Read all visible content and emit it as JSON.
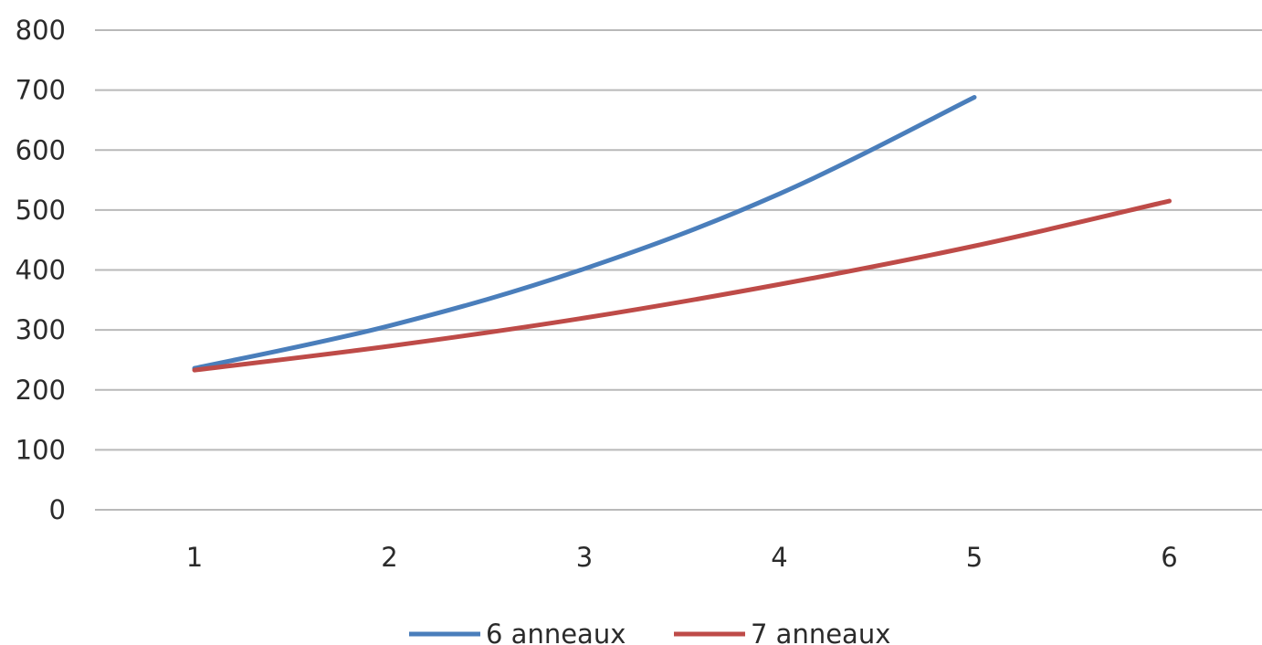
{
  "chart_data": {
    "type": "line",
    "title": "",
    "xlabel": "",
    "ylabel": "",
    "x": [
      1,
      2,
      3,
      4,
      5,
      6
    ],
    "ylim": [
      0,
      800
    ],
    "yticks": [
      0,
      100,
      200,
      300,
      400,
      500,
      600,
      700,
      800
    ],
    "grid": true,
    "legend": "bottom",
    "series": [
      {
        "name": "6 anneaux",
        "color": "#4a7ebb",
        "values": [
          236,
          307,
          402,
          527,
          688,
          null
        ]
      },
      {
        "name": "7 anneaux",
        "color": "#be4b48",
        "values": [
          233,
          273,
          320,
          376,
          440,
          515
        ]
      }
    ]
  }
}
